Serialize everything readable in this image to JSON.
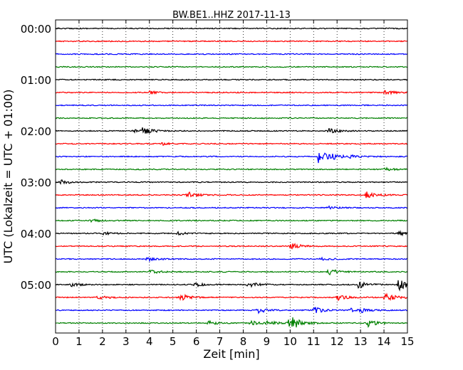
{
  "chart_data": {
    "type": "line",
    "title": "BW.BE1..HHZ 2017-11-13",
    "xlabel": "Zeit  [min]",
    "ylabel": "UTC (Lokalzeit = UTC + 01:00)",
    "xlim": [
      0,
      15
    ],
    "x_ticks": [
      "0",
      "1",
      "2",
      "3",
      "4",
      "5",
      "6",
      "7",
      "8",
      "9",
      "10",
      "11",
      "12",
      "13",
      "14",
      "15"
    ],
    "y_tick_labels": [
      "00:00",
      "01:00",
      "02:00",
      "03:00",
      "04:00",
      "05:00"
    ],
    "grid": "vertical dotted",
    "trace_minutes": 15,
    "traces_per_hour": 4,
    "colors": [
      "#000000",
      "#ff0000",
      "#0000ff",
      "#008000"
    ],
    "series": [
      {
        "start": "00:00",
        "events": []
      },
      {
        "start": "00:15",
        "events": []
      },
      {
        "start": "00:30",
        "events": []
      },
      {
        "start": "00:45",
        "events": []
      },
      {
        "start": "01:00",
        "events": []
      },
      {
        "start": "01:15",
        "events": [
          {
            "t": 4.0,
            "a": 2
          },
          {
            "t": 14.0,
            "a": 3
          }
        ]
      },
      {
        "start": "01:30",
        "events": []
      },
      {
        "start": "01:45",
        "events": []
      },
      {
        "start": "02:00",
        "events": [
          {
            "t": 3.3,
            "a": 2
          },
          {
            "t": 3.7,
            "a": 5
          },
          {
            "t": 11.6,
            "a": 4
          }
        ]
      },
      {
        "start": "02:15",
        "events": [
          {
            "t": 4.5,
            "a": 2
          }
        ]
      },
      {
        "start": "02:30",
        "events": [
          {
            "t": 11.2,
            "a": 9
          },
          {
            "t": 11.7,
            "a": 4
          },
          {
            "t": 12.5,
            "a": 2
          }
        ]
      },
      {
        "start": "02:45",
        "events": [
          {
            "t": 14.0,
            "a": 2
          }
        ]
      },
      {
        "start": "03:00",
        "events": [
          {
            "t": 0.2,
            "a": 3
          }
        ]
      },
      {
        "start": "03:15",
        "events": [
          {
            "t": 5.6,
            "a": 5
          },
          {
            "t": 13.2,
            "a": 5
          }
        ]
      },
      {
        "start": "03:30",
        "events": [
          {
            "t": 11.6,
            "a": 2
          }
        ]
      },
      {
        "start": "03:45",
        "events": [
          {
            "t": 1.5,
            "a": 2
          }
        ]
      },
      {
        "start": "04:00",
        "events": [
          {
            "t": 2.0,
            "a": 2
          },
          {
            "t": 5.2,
            "a": 2
          },
          {
            "t": 14.6,
            "a": 3
          }
        ]
      },
      {
        "start": "04:15",
        "events": [
          {
            "t": 10.0,
            "a": 5
          }
        ]
      },
      {
        "start": "04:30",
        "events": [
          {
            "t": 3.9,
            "a": 4
          },
          {
            "t": 11.3,
            "a": 2
          }
        ]
      },
      {
        "start": "04:45",
        "events": [
          {
            "t": 4.0,
            "a": 3
          },
          {
            "t": 11.6,
            "a": 5
          }
        ]
      },
      {
        "start": "05:00",
        "events": [
          {
            "t": 0.6,
            "a": 3
          },
          {
            "t": 5.9,
            "a": 3
          },
          {
            "t": 8.2,
            "a": 4
          },
          {
            "t": 12.9,
            "a": 5
          },
          {
            "t": 14.6,
            "a": 9
          }
        ]
      },
      {
        "start": "05:15",
        "events": [
          {
            "t": 1.8,
            "a": 3
          },
          {
            "t": 5.3,
            "a": 5
          },
          {
            "t": 12.0,
            "a": 4
          },
          {
            "t": 14.0,
            "a": 10
          }
        ]
      },
      {
        "start": "05:30",
        "events": [
          {
            "t": 8.6,
            "a": 4
          },
          {
            "t": 11.0,
            "a": 5
          },
          {
            "t": 12.5,
            "a": 3
          },
          {
            "t": 13.0,
            "a": 3
          }
        ]
      },
      {
        "start": "05:45",
        "events": [
          {
            "t": 6.5,
            "a": 3
          },
          {
            "t": 8.3,
            "a": 3
          },
          {
            "t": 9.0,
            "a": 3
          },
          {
            "t": 9.9,
            "a": 5
          },
          {
            "t": 10.1,
            "a": 6
          },
          {
            "t": 13.3,
            "a": 5
          }
        ]
      }
    ]
  }
}
